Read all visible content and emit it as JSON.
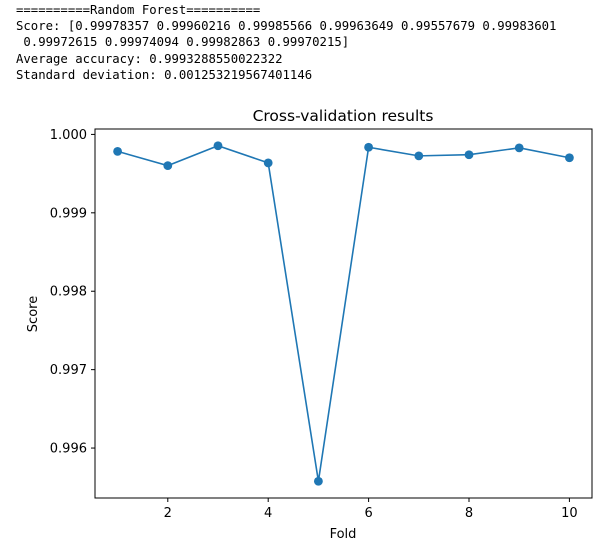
{
  "console": {
    "header": "==========Random Forest==========",
    "score_line_1": "Score: [0.99978357 0.99960216 0.99985566 0.99963649 0.99557679 0.99983601",
    "score_line_2": " 0.99972615 0.99974094 0.99982863 0.99970215]",
    "average_line": "Average accuracy: 0.9993288550022322",
    "std_line": "Standard deviation: 0.001253219567401146"
  },
  "chart_data": {
    "type": "line",
    "title": "Cross-validation results",
    "xlabel": "Fold",
    "ylabel": "Score",
    "x": [
      1,
      2,
      3,
      4,
      5,
      6,
      7,
      8,
      9,
      10
    ],
    "series": [
      {
        "name": "Score",
        "values": [
          0.99978357,
          0.99960216,
          0.99985566,
          0.99963649,
          0.99557679,
          0.99983601,
          0.99972615,
          0.99974094,
          0.99982863,
          0.99970215
        ]
      }
    ],
    "xticks": [
      2,
      4,
      6,
      8,
      10
    ],
    "xtick_labels": [
      "2",
      "4",
      "6",
      "8",
      "10"
    ],
    "yticks": [
      0.996,
      0.997,
      0.998,
      0.999,
      1.0
    ],
    "ytick_labels": [
      "0.996",
      "0.997",
      "0.998",
      "0.999",
      "1.000"
    ],
    "xlim": [
      0.55,
      10.45
    ],
    "ylim": [
      0.995363,
      1.000069
    ],
    "line_color": "#1f77b4",
    "grid": false
  }
}
